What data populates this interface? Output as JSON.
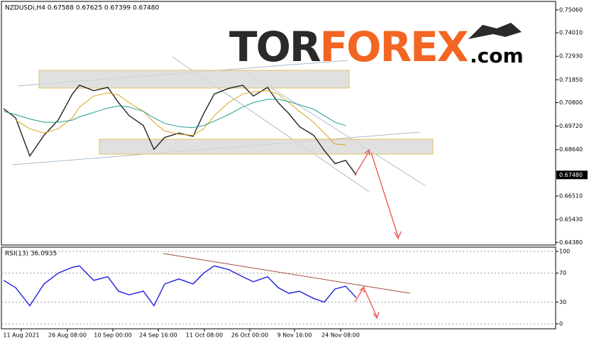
{
  "logo": {
    "part1": "TOR",
    "part2": "FOREX",
    "part3": ".com"
  },
  "chart_data": [
    {
      "type": "line",
      "title": "NZDUSDi,H4 0.67588 0.67625 0.67399 0.67480",
      "x": [
        3,
        20,
        40,
        60,
        80,
        100,
        110,
        130,
        150,
        165,
        180,
        200,
        215,
        230,
        250,
        270,
        285,
        300,
        320,
        340,
        355,
        375,
        390,
        405,
        420,
        440,
        455,
        470,
        485,
        500
      ],
      "series": [
        {
          "color": "#222222",
          "values": [
            0.7052,
            0.701,
            0.6835,
            0.693,
            0.7,
            0.712,
            0.716,
            0.7135,
            0.715,
            0.708,
            0.702,
            0.6975,
            0.6865,
            0.692,
            0.694,
            0.6925,
            0.703,
            0.712,
            0.7145,
            0.716,
            0.711,
            0.715,
            0.708,
            0.703,
            0.697,
            0.693,
            0.686,
            0.68,
            0.6815,
            0.6748
          ]
        },
        {
          "color": "#d9a21b",
          "values": [
            null,
            0.7,
            0.696,
            0.694,
            0.696,
            0.701,
            0.706,
            0.711,
            0.7125,
            0.7115,
            0.708,
            0.704,
            0.699,
            0.695,
            0.6935,
            0.693,
            0.696,
            0.702,
            0.708,
            0.712,
            0.713,
            0.7135,
            0.712,
            0.708,
            0.704,
            0.699,
            0.694,
            0.689,
            0.6885,
            null
          ]
        },
        {
          "color": "#1e9e8e",
          "values": [
            0.704,
            0.7025,
            0.7005,
            0.699,
            0.699,
            0.7,
            0.7015,
            0.7035,
            0.7055,
            0.7065,
            0.706,
            0.704,
            0.701,
            0.6985,
            0.697,
            0.6965,
            0.6975,
            0.6995,
            0.7025,
            0.706,
            0.708,
            0.7095,
            0.7095,
            0.7085,
            0.707,
            0.705,
            0.702,
            0.699,
            0.6975,
            null
          ]
        }
      ],
      "last_price": {
        "value": 0.6748,
        "label": "0.67480"
      },
      "xlim": [
        0,
        781
      ],
      "ylim": [
        0.6426,
        0.7545
      ],
      "yticks": [
        {
          "value": 0.7506,
          "label": "0.75060"
        },
        {
          "value": 0.7401,
          "label": "0.74010"
        },
        {
          "value": 0.7293,
          "label": "0.72930"
        },
        {
          "value": 0.7185,
          "label": "0.71850"
        },
        {
          "value": 0.708,
          "label": "0.70800"
        },
        {
          "value": 0.6972,
          "label": "0.69720"
        },
        {
          "value": 0.6864,
          "label": "0.68640"
        },
        {
          "value": 0.6651,
          "label": "0.66510"
        },
        {
          "value": 0.6543,
          "label": "0.65430"
        },
        {
          "value": 0.6438,
          "label": "0.64380"
        }
      ],
      "grid": false
    },
    {
      "type": "line",
      "title": "RSI(13) 36.0935",
      "x": [
        3,
        20,
        40,
        60,
        80,
        100,
        110,
        130,
        150,
        165,
        180,
        200,
        215,
        230,
        250,
        270,
        285,
        300,
        320,
        340,
        355,
        375,
        390,
        405,
        420,
        440,
        455,
        470,
        485,
        500
      ],
      "series": [
        {
          "color": "#1f1fe0",
          "values": [
            60,
            50,
            25,
            55,
            70,
            78,
            80,
            60,
            65,
            45,
            40,
            45,
            25,
            55,
            62,
            55,
            70,
            80,
            75,
            65,
            58,
            65,
            50,
            42,
            45,
            35,
            30,
            48,
            52,
            36.1
          ]
        }
      ],
      "xlim": [
        0,
        781
      ],
      "ylim": [
        -6.9,
        105.9
      ],
      "yticks": [
        100,
        70,
        30,
        0
      ],
      "grid": true,
      "xticks": [
        {
          "value": 28,
          "label": "11 Aug 2021"
        },
        {
          "value": 93,
          "label": "26 Aug 08:00"
        },
        {
          "value": 157,
          "label": "10 Sep 00:00"
        },
        {
          "value": 221,
          "label": "24 Sep 16:00"
        },
        {
          "value": 286,
          "label": "11 Oct 08:00"
        },
        {
          "value": 350,
          "label": "26 Oct 00:00"
        },
        {
          "value": 413,
          "label": "9 Nov 16:00"
        },
        {
          "value": 478,
          "label": "24 Nov 08:00"
        }
      ]
    }
  ]
}
